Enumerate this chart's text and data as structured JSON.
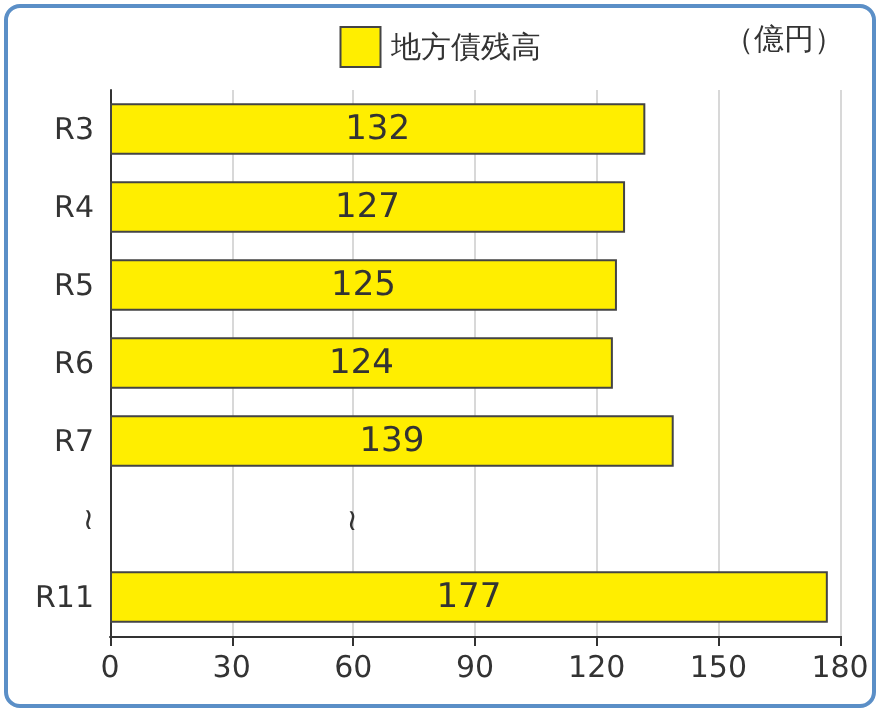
{
  "chart_data": {
    "type": "bar",
    "orientation": "horizontal",
    "xlabel": "（億円）",
    "categories": [
      "R3",
      "R4",
      "R5",
      "R6",
      "R7",
      "≀",
      "R11"
    ],
    "series": [
      {
        "name": "地方債残高",
        "color": "#ffee00",
        "values": [
          132,
          127,
          125,
          124,
          139,
          null,
          177
        ]
      }
    ],
    "xlim": [
      0,
      180
    ],
    "xticks": [
      0,
      30,
      60,
      90,
      120,
      150,
      180
    ],
    "grid": "x",
    "legend": "top",
    "data_labels": true,
    "annotations": [
      "≀"
    ]
  }
}
